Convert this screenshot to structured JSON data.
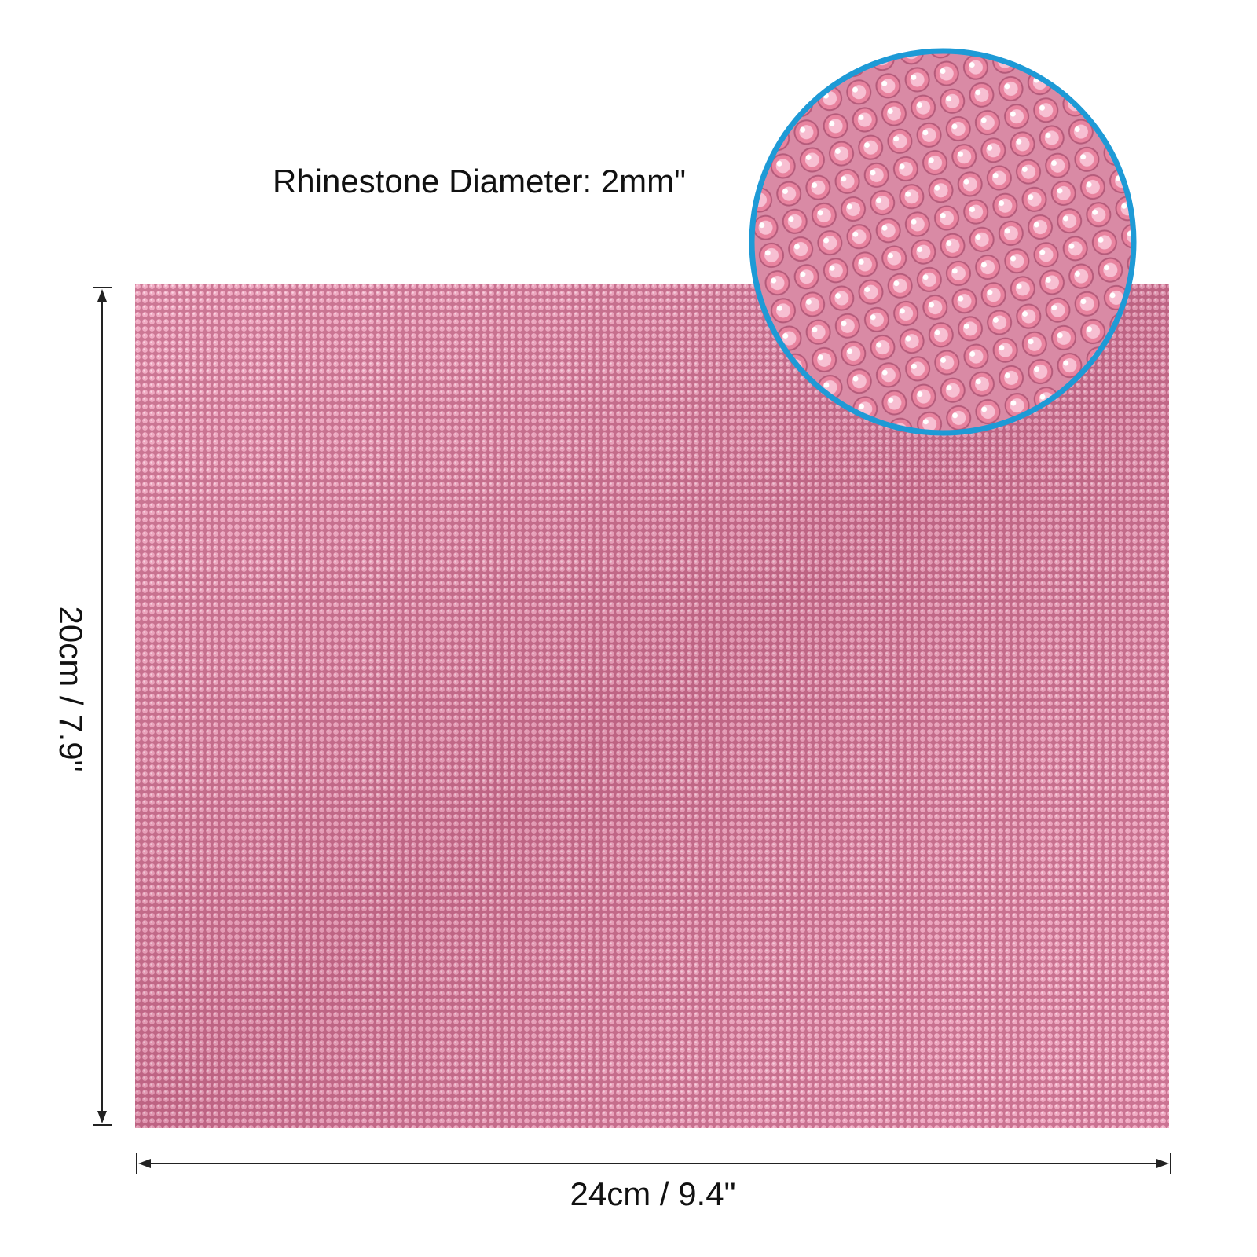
{
  "caption": "Rhinestone Diameter: 2mm\"",
  "dimensions": {
    "height": "20cm / 7.9\"",
    "width": "24cm / 9.4\""
  }
}
